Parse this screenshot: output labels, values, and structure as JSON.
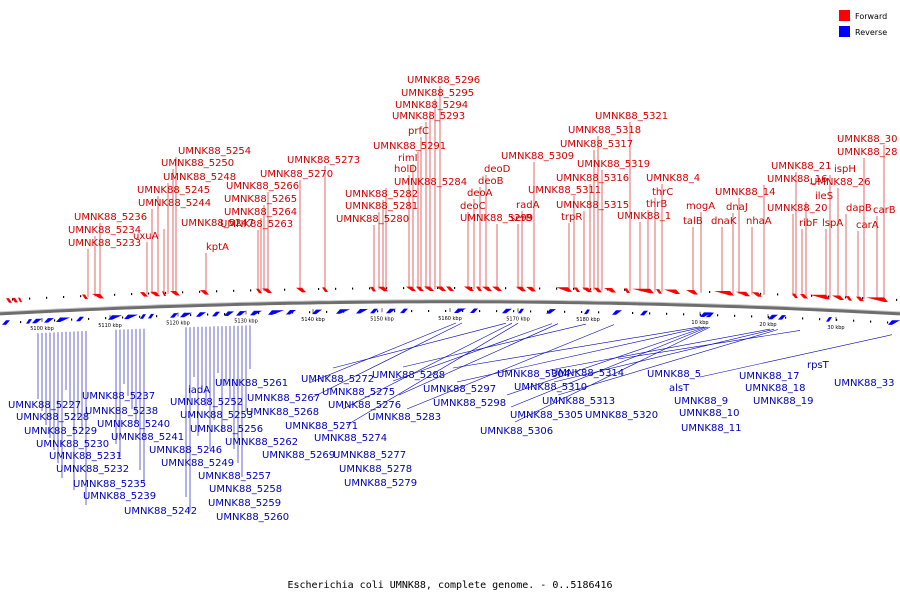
{
  "colors": {
    "forward": "#ff0000",
    "reverse": "#0000ff",
    "backbone_dark": "#6e6e6e",
    "backbone_light": "#c8c8c8",
    "label_forward": "#d00000",
    "label_reverse": "#0000bb"
  },
  "legend": {
    "forward": {
      "label": "Forward",
      "color": "#ff0000"
    },
    "reverse": {
      "label": "Reverse",
      "color": "#0000ff"
    }
  },
  "caption": "Escherichia coli UMNK88, complete genome. - 0..5186416",
  "ticks": [
    "5100 kbp",
    "5110 kbp",
    "5120 kbp",
    "5130 kbp",
    "5140 kbp",
    "5150 kbp",
    "5160 kbp",
    "5170 kbp",
    "5180 kbp",
    "10 kbp",
    "20 kbp",
    "30 kbp"
  ],
  "forward_labels": [
    "UMNK88_5233",
    "UMNK88_5234",
    "UMNK88_5236",
    "uxuA",
    "UMNK88_5244",
    "UMNK88_5245",
    "UMNK88_5247",
    "UMNK88_5248",
    "UMNK88_5250",
    "UMNK88_5254",
    "kptA",
    "UMNK88_5263",
    "UMNK88_5264",
    "UMNK88_5265",
    "UMNK88_5266",
    "UMNK88_5270",
    "UMNK88_5273",
    "UMNK88_5280",
    "UMNK88_5281",
    "UMNK88_5282",
    "UMNK88_5284",
    "holD",
    "rimI",
    "UMNK88_5291",
    "prfC",
    "UMNK88_5293",
    "UMNK88_5294",
    "UMNK88_5295",
    "UMNK88_5296",
    "deoC",
    "deoA",
    "deoB",
    "deoD",
    "UMNK88_5299",
    "serB",
    "radA",
    "UMNK88_5309",
    "trpR",
    "UMNK88_5311",
    "UMNK88_5315",
    "UMNK88_5316",
    "UMNK88_5317",
    "UMNK88_5318",
    "UMNK88_5319",
    "UMNK88_5321",
    "UMNK88_1",
    "thrB",
    "thrC",
    "UMNK88_4",
    "talB",
    "mogA",
    "dnaK",
    "dnaJ",
    "UMNK88_14",
    "nhaA",
    "UMNK88_16",
    "UMNK88_20",
    "UMNK88_21",
    "ribF",
    "ileS",
    "lspA",
    "ispH",
    "UMNK88_26",
    "dapB",
    "carA",
    "UMNK88_28",
    "carB",
    "UMNK88_30"
  ],
  "reverse_labels": [
    "UMNK88_5227",
    "UMNK88_5228",
    "UMNK88_5229",
    "UMNK88_5230",
    "UMNK88_5231",
    "UMNK88_5232",
    "UMNK88_5235",
    "UMNK88_5237",
    "UMNK88_5238",
    "UMNK88_5239",
    "UMNK88_5240",
    "UMNK88_5241",
    "UMNK88_5242",
    "UMNK88_5246",
    "UMNK88_5249",
    "iadA",
    "UMNK88_5252",
    "UMNK88_5253",
    "UMNK88_5256",
    "UMNK88_5257",
    "UMNK88_5258",
    "UMNK88_5259",
    "UMNK88_5260",
    "UMNK88_5261",
    "UMNK88_5262",
    "UMNK88_5267",
    "UMNK88_5268",
    "UMNK88_5269",
    "UMNK88_5271",
    "UMNK88_5272",
    "UMNK88_5274",
    "UMNK88_5275",
    "UMNK88_5276",
    "UMNK88_5277",
    "UMNK88_5278",
    "UMNK88_5279",
    "UMNK88_5283",
    "UMNK88_5288",
    "UMNK88_5297",
    "UMNK88_5298",
    "UMNK88_5304",
    "UMNK88_5305",
    "UMNK88_5306",
    "UMNK88_5310",
    "UMNK88_5313",
    "UMNK88_5314",
    "UMNK88_5320",
    "UMNK88_5",
    "alsT",
    "UMNK88_9",
    "UMNK88_10",
    "UMNK88_11",
    "UMNK88_17",
    "UMNK88_18",
    "UMNK88_19",
    "rpsT",
    "UMNK88_33"
  ]
}
